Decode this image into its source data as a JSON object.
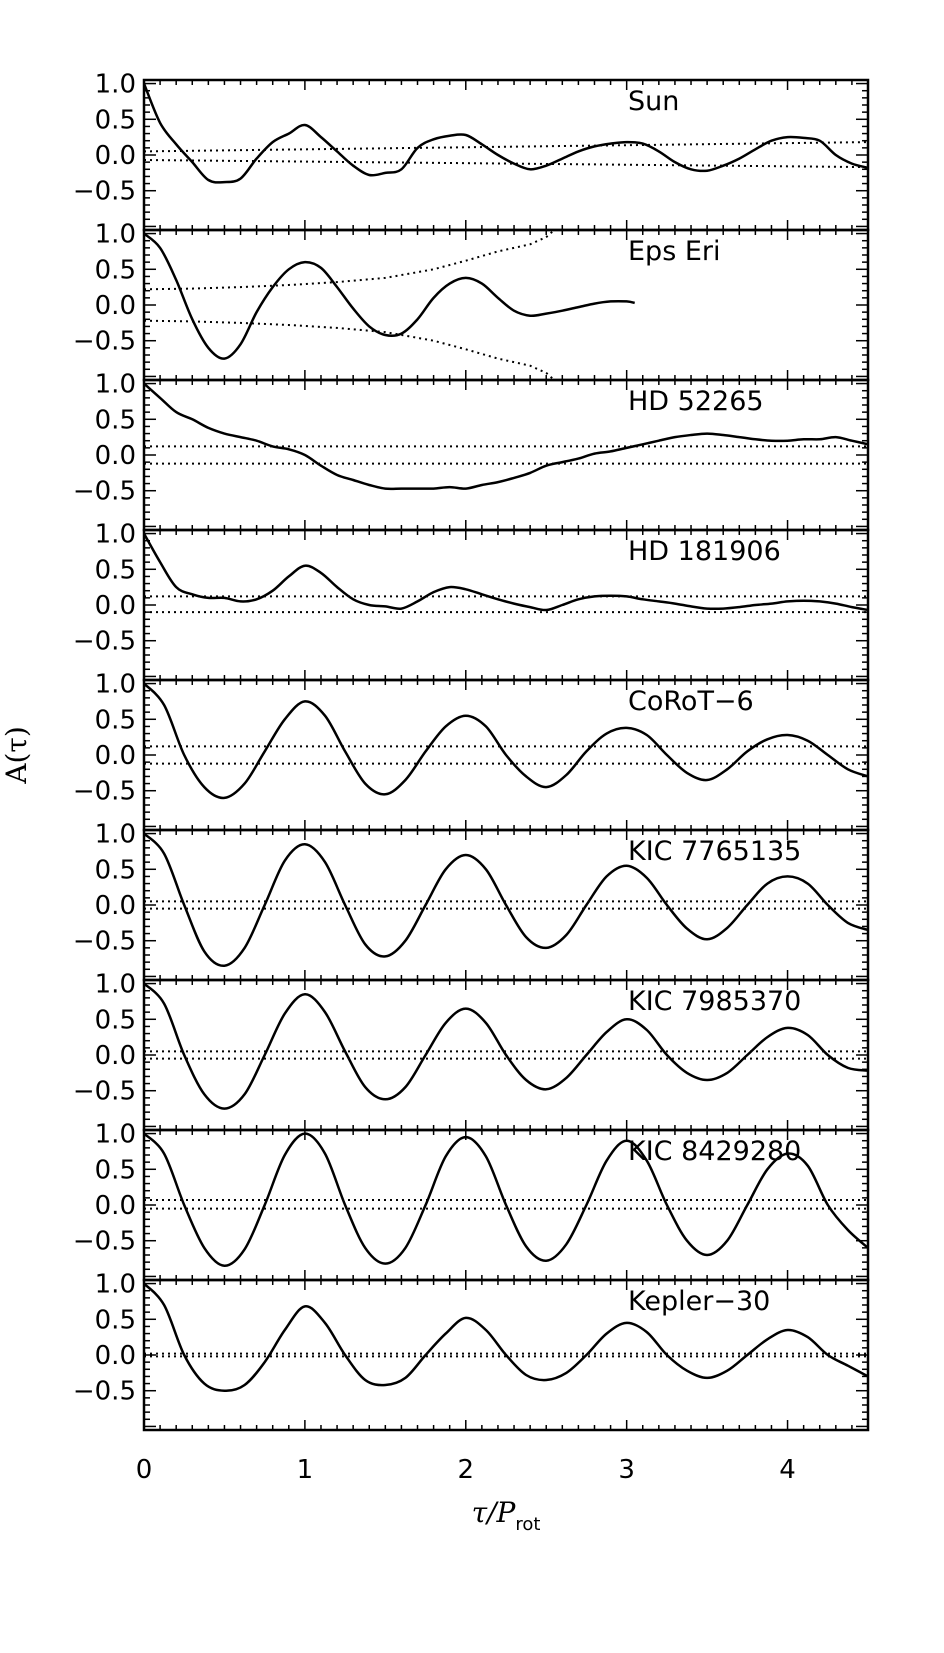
{
  "chart_data": {
    "type": "line",
    "xlabel_main": "τ/P",
    "xlabel_sub": "rot",
    "ylabel": "A(τ)",
    "xlim": [
      0,
      4.5
    ],
    "ylim": [
      -1.05,
      1.05
    ],
    "xticks": [
      "0",
      "1",
      "2",
      "3",
      "4"
    ],
    "xtick_values": [
      0,
      1,
      2,
      3,
      4
    ],
    "yticks": [
      "1.0",
      "0.5",
      "0.0",
      "−0.5"
    ],
    "ytick_values": [
      1.0,
      0.5,
      0.0,
      -0.5
    ],
    "grid": false,
    "panels": [
      {
        "label": "Sun",
        "curve": {
          "x": [
            0,
            0.1,
            0.2,
            0.3,
            0.4,
            0.5,
            0.6,
            0.7,
            0.8,
            0.9,
            1.0,
            1.1,
            1.2,
            1.3,
            1.4,
            1.5,
            1.6,
            1.7,
            1.8,
            1.9,
            2.0,
            2.1,
            2.2,
            2.3,
            2.4,
            2.5,
            2.6,
            2.7,
            2.8,
            2.9,
            3.0,
            3.1,
            3.2,
            3.3,
            3.4,
            3.5,
            3.6,
            3.7,
            3.8,
            3.9,
            4.0,
            4.1,
            4.2,
            4.3,
            4.4,
            4.5
          ],
          "y": [
            1.0,
            0.45,
            0.15,
            -0.1,
            -0.35,
            -0.38,
            -0.33,
            -0.05,
            0.18,
            0.3,
            0.42,
            0.25,
            0.05,
            -0.15,
            -0.28,
            -0.25,
            -0.2,
            0.1,
            0.22,
            0.27,
            0.28,
            0.15,
            0.0,
            -0.12,
            -0.2,
            -0.15,
            -0.05,
            0.05,
            0.12,
            0.16,
            0.18,
            0.16,
            0.05,
            -0.1,
            -0.2,
            -0.22,
            -0.15,
            -0.05,
            0.08,
            0.2,
            0.25,
            0.24,
            0.2,
            0.0,
            -0.12,
            -0.18
          ]
        },
        "upper": {
          "x": [
            0,
            4.5
          ],
          "y": [
            0.05,
            0.18
          ]
        },
        "lower": {
          "x": [
            0,
            4.5
          ],
          "y": [
            -0.07,
            -0.17
          ]
        }
      },
      {
        "label": "Eps Eri",
        "curve": {
          "x": [
            0,
            0.1,
            0.2,
            0.3,
            0.4,
            0.5,
            0.6,
            0.7,
            0.8,
            0.9,
            1.0,
            1.1,
            1.2,
            1.3,
            1.4,
            1.5,
            1.6,
            1.7,
            1.8,
            1.9,
            2.0,
            2.1,
            2.2,
            2.3,
            2.4,
            2.5,
            2.6,
            2.7,
            2.8,
            2.9,
            3.0,
            3.05
          ],
          "y": [
            1.0,
            0.8,
            0.35,
            -0.2,
            -0.6,
            -0.75,
            -0.55,
            -0.1,
            0.25,
            0.5,
            0.6,
            0.52,
            0.25,
            -0.05,
            -0.3,
            -0.42,
            -0.4,
            -0.2,
            0.1,
            0.3,
            0.38,
            0.3,
            0.1,
            -0.08,
            -0.15,
            -0.12,
            -0.08,
            -0.03,
            0.02,
            0.05,
            0.05,
            0.03
          ]
        },
        "upper": {
          "x": [
            0,
            0.3,
            0.6,
            0.9,
            1.2,
            1.5,
            1.8,
            2.0,
            2.2,
            2.4,
            2.5,
            2.55
          ],
          "y": [
            0.22,
            0.23,
            0.25,
            0.28,
            0.32,
            0.38,
            0.5,
            0.62,
            0.75,
            0.85,
            0.95,
            1.05
          ]
        },
        "lower": {
          "x": [
            0,
            0.3,
            0.6,
            0.9,
            1.2,
            1.5,
            1.8,
            2.0,
            2.2,
            2.4,
            2.5,
            2.55
          ],
          "y": [
            -0.22,
            -0.23,
            -0.25,
            -0.28,
            -0.32,
            -0.38,
            -0.5,
            -0.62,
            -0.75,
            -0.85,
            -0.95,
            -1.05
          ]
        }
      },
      {
        "label": "HD 52265",
        "curve": {
          "x": [
            0,
            0.1,
            0.2,
            0.3,
            0.4,
            0.5,
            0.6,
            0.7,
            0.8,
            0.9,
            1.0,
            1.1,
            1.2,
            1.3,
            1.4,
            1.5,
            1.6,
            1.7,
            1.8,
            1.9,
            2.0,
            2.1,
            2.2,
            2.3,
            2.4,
            2.5,
            2.6,
            2.7,
            2.8,
            2.9,
            3.0,
            3.1,
            3.2,
            3.3,
            3.4,
            3.5,
            3.6,
            3.7,
            3.8,
            3.9,
            4.0,
            4.1,
            4.2,
            4.3,
            4.4,
            4.5
          ],
          "y": [
            1.0,
            0.8,
            0.6,
            0.5,
            0.38,
            0.3,
            0.25,
            0.2,
            0.12,
            0.08,
            0.0,
            -0.15,
            -0.28,
            -0.35,
            -0.42,
            -0.47,
            -0.47,
            -0.47,
            -0.47,
            -0.45,
            -0.47,
            -0.42,
            -0.38,
            -0.32,
            -0.25,
            -0.15,
            -0.1,
            -0.05,
            0.02,
            0.05,
            0.1,
            0.15,
            0.2,
            0.25,
            0.28,
            0.3,
            0.28,
            0.25,
            0.22,
            0.2,
            0.2,
            0.22,
            0.22,
            0.25,
            0.2,
            0.15
          ]
        },
        "upper": {
          "x": [
            0,
            4.5
          ],
          "y": [
            0.12,
            0.12
          ]
        },
        "lower": {
          "x": [
            0,
            4.5
          ],
          "y": [
            -0.12,
            -0.12
          ]
        }
      },
      {
        "label": "HD 181906",
        "curve": {
          "x": [
            0,
            0.1,
            0.2,
            0.3,
            0.4,
            0.5,
            0.6,
            0.7,
            0.8,
            0.9,
            1.0,
            1.1,
            1.2,
            1.3,
            1.4,
            1.5,
            1.6,
            1.7,
            1.8,
            1.9,
            2.0,
            2.1,
            2.2,
            2.3,
            2.4,
            2.5,
            2.6,
            2.7,
            2.8,
            2.9,
            3.0,
            3.1,
            3.2,
            3.3,
            3.4,
            3.5,
            3.6,
            3.7,
            3.8,
            3.9,
            4.0,
            4.1,
            4.2,
            4.3,
            4.4,
            4.5
          ],
          "y": [
            1.0,
            0.6,
            0.25,
            0.15,
            0.1,
            0.1,
            0.05,
            0.08,
            0.2,
            0.4,
            0.55,
            0.45,
            0.25,
            0.08,
            0.0,
            -0.02,
            -0.05,
            0.05,
            0.18,
            0.25,
            0.22,
            0.15,
            0.08,
            0.02,
            -0.03,
            -0.07,
            0.0,
            0.08,
            0.12,
            0.13,
            0.12,
            0.08,
            0.05,
            0.02,
            -0.02,
            -0.05,
            -0.05,
            -0.03,
            0.0,
            0.02,
            0.05,
            0.06,
            0.05,
            0.02,
            -0.03,
            -0.07
          ]
        },
        "upper": {
          "x": [
            0,
            4.5
          ],
          "y": [
            0.12,
            0.12
          ]
        },
        "lower": {
          "x": [
            0,
            4.5
          ],
          "y": [
            -0.1,
            -0.1
          ]
        }
      },
      {
        "label": "CoRoT−6",
        "curve": {
          "x": [
            0,
            0.125,
            0.25,
            0.375,
            0.5,
            0.625,
            0.75,
            0.875,
            1.0,
            1.125,
            1.25,
            1.375,
            1.5,
            1.625,
            1.75,
            1.875,
            2.0,
            2.125,
            2.25,
            2.375,
            2.5,
            2.625,
            2.75,
            2.875,
            3.0,
            3.125,
            3.25,
            3.375,
            3.5,
            3.625,
            3.75,
            3.875,
            4.0,
            4.125,
            4.25,
            4.375,
            4.5
          ],
          "y": [
            1.0,
            0.7,
            0.0,
            -0.45,
            -0.6,
            -0.4,
            0.05,
            0.5,
            0.75,
            0.55,
            0.05,
            -0.4,
            -0.55,
            -0.35,
            0.05,
            0.4,
            0.55,
            0.4,
            0.0,
            -0.3,
            -0.45,
            -0.28,
            0.05,
            0.3,
            0.38,
            0.28,
            0.0,
            -0.25,
            -0.35,
            -0.2,
            0.05,
            0.22,
            0.28,
            0.2,
            0.0,
            -0.2,
            -0.3
          ]
        },
        "upper": {
          "x": [
            0,
            4.5
          ],
          "y": [
            0.12,
            0.12
          ]
        },
        "lower": {
          "x": [
            0,
            4.5
          ],
          "y": [
            -0.12,
            -0.12
          ]
        }
      },
      {
        "label": "KIC 7765135",
        "curve": {
          "x": [
            0,
            0.125,
            0.25,
            0.375,
            0.5,
            0.625,
            0.75,
            0.875,
            1.0,
            1.125,
            1.25,
            1.375,
            1.5,
            1.625,
            1.75,
            1.875,
            2.0,
            2.125,
            2.25,
            2.375,
            2.5,
            2.625,
            2.75,
            2.875,
            3.0,
            3.125,
            3.25,
            3.375,
            3.5,
            3.625,
            3.75,
            3.875,
            4.0,
            4.125,
            4.25,
            4.375,
            4.5
          ],
          "y": [
            1.0,
            0.72,
            0.0,
            -0.65,
            -0.85,
            -0.6,
            0.0,
            0.62,
            0.85,
            0.6,
            0.0,
            -0.55,
            -0.72,
            -0.5,
            0.0,
            0.5,
            0.7,
            0.5,
            0.0,
            -0.45,
            -0.6,
            -0.42,
            0.0,
            0.4,
            0.55,
            0.38,
            0.0,
            -0.33,
            -0.48,
            -0.32,
            0.0,
            0.3,
            0.4,
            0.3,
            0.0,
            -0.25,
            -0.35
          ]
        },
        "upper": {
          "x": [
            0,
            4.5
          ],
          "y": [
            0.05,
            0.05
          ]
        },
        "lower": {
          "x": [
            0,
            4.5
          ],
          "y": [
            -0.05,
            -0.05
          ]
        }
      },
      {
        "label": "KIC 7985370",
        "curve": {
          "x": [
            0,
            0.125,
            0.25,
            0.375,
            0.5,
            0.625,
            0.75,
            0.875,
            1.0,
            1.125,
            1.25,
            1.375,
            1.5,
            1.625,
            1.75,
            1.875,
            2.0,
            2.125,
            2.25,
            2.375,
            2.5,
            2.625,
            2.75,
            2.875,
            3.0,
            3.125,
            3.25,
            3.375,
            3.5,
            3.625,
            3.75,
            3.875,
            4.0,
            4.125,
            4.25,
            4.375,
            4.5
          ],
          "y": [
            1.0,
            0.72,
            0.0,
            -0.55,
            -0.75,
            -0.55,
            0.0,
            0.58,
            0.85,
            0.6,
            0.05,
            -0.45,
            -0.62,
            -0.45,
            0.0,
            0.45,
            0.65,
            0.45,
            0.0,
            -0.35,
            -0.48,
            -0.32,
            0.0,
            0.32,
            0.5,
            0.35,
            0.0,
            -0.25,
            -0.35,
            -0.25,
            0.0,
            0.25,
            0.38,
            0.28,
            0.0,
            -0.18,
            -0.22
          ]
        },
        "upper": {
          "x": [
            0,
            4.5
          ],
          "y": [
            0.05,
            0.05
          ]
        },
        "lower": {
          "x": [
            0,
            4.5
          ],
          "y": [
            -0.05,
            -0.05
          ]
        }
      },
      {
        "label": "KIC 8429280",
        "curve": {
          "x": [
            0,
            0.125,
            0.25,
            0.375,
            0.5,
            0.625,
            0.75,
            0.875,
            1.0,
            1.125,
            1.25,
            1.375,
            1.5,
            1.625,
            1.75,
            1.875,
            2.0,
            2.125,
            2.25,
            2.375,
            2.5,
            2.625,
            2.75,
            2.875,
            3.0,
            3.125,
            3.25,
            3.375,
            3.5,
            3.625,
            3.75,
            3.875,
            4.0,
            4.125,
            4.25,
            4.375,
            4.5
          ],
          "y": [
            1.0,
            0.72,
            0.0,
            -0.6,
            -0.85,
            -0.62,
            0.0,
            0.7,
            1.0,
            0.72,
            0.0,
            -0.6,
            -0.82,
            -0.6,
            0.0,
            0.68,
            0.95,
            0.68,
            0.0,
            -0.58,
            -0.78,
            -0.55,
            0.0,
            0.62,
            0.9,
            0.62,
            0.0,
            -0.5,
            -0.7,
            -0.5,
            0.0,
            0.5,
            0.72,
            0.55,
            0.0,
            -0.35,
            -0.6
          ]
        },
        "upper": {
          "x": [
            0,
            4.5
          ],
          "y": [
            0.07,
            0.07
          ]
        },
        "lower": {
          "x": [
            0,
            4.5
          ],
          "y": [
            -0.05,
            -0.05
          ]
        }
      },
      {
        "label": "Kepler−30",
        "curve": {
          "x": [
            0,
            0.125,
            0.25,
            0.375,
            0.5,
            0.625,
            0.75,
            0.875,
            1.0,
            1.125,
            1.25,
            1.375,
            1.5,
            1.625,
            1.75,
            1.875,
            2.0,
            2.125,
            2.25,
            2.375,
            2.5,
            2.625,
            2.75,
            2.875,
            3.0,
            3.125,
            3.25,
            3.375,
            3.5,
            3.625,
            3.75,
            3.875,
            4.0,
            4.125,
            4.25,
            4.375,
            4.5
          ],
          "y": [
            1.0,
            0.7,
            0.0,
            -0.4,
            -0.5,
            -0.42,
            -0.1,
            0.35,
            0.68,
            0.45,
            0.0,
            -0.35,
            -0.42,
            -0.32,
            0.0,
            0.3,
            0.52,
            0.35,
            0.0,
            -0.28,
            -0.35,
            -0.25,
            0.0,
            0.3,
            0.45,
            0.32,
            0.0,
            -0.22,
            -0.32,
            -0.22,
            0.0,
            0.22,
            0.35,
            0.25,
            0.0,
            -0.15,
            -0.3
          ]
        },
        "upper": {
          "x": [
            0,
            4.5
          ],
          "y": [
            0.02,
            0.02
          ]
        },
        "lower": {
          "x": [
            0,
            4.5
          ],
          "y": [
            -0.02,
            -0.02
          ]
        }
      }
    ]
  }
}
